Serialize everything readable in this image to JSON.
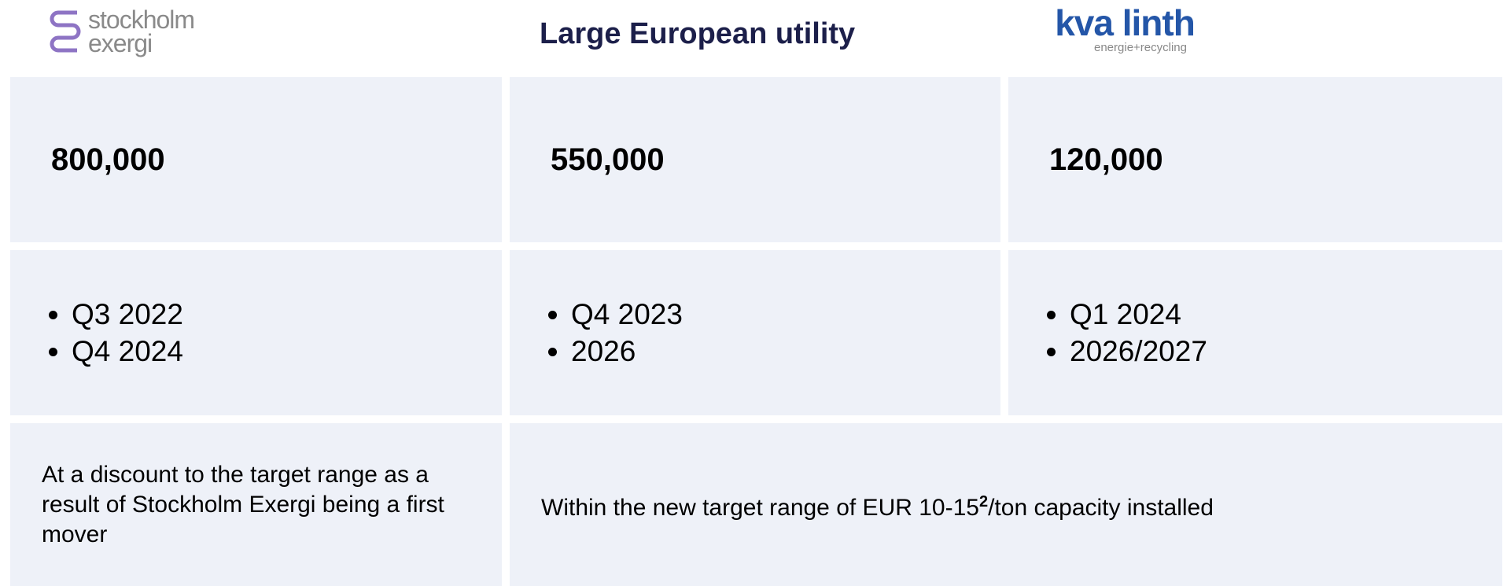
{
  "header": {
    "left_logo": {
      "line1": "stockholm",
      "line2": "exergi"
    },
    "title": "Large European utility",
    "right_logo": {
      "name": "kva linth",
      "tagline": "energie+recycling"
    }
  },
  "table": {
    "rows": [
      [
        "800,000",
        "550,000",
        "120,000"
      ],
      [
        [
          "Q3 2022",
          "Q4 2024"
        ],
        [
          "Q4 2023",
          "2026"
        ],
        [
          "Q1 2024",
          "2026/2027"
        ]
      ],
      [
        "At a discount to the target range as a result of Stockholm Exergi being a first mover",
        {
          "text": "Within the new target range of EUR 10-15",
          "sup": "2",
          "rest": "/ton capacity installed"
        }
      ]
    ]
  }
}
